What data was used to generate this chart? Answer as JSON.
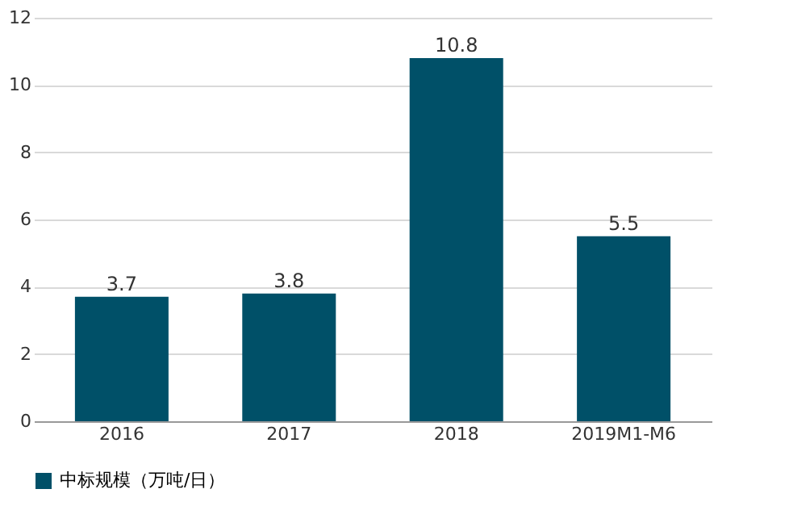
{
  "chart_data": {
    "type": "bar",
    "categories": [
      "2016",
      "2017",
      "2018",
      "2019M1-M6"
    ],
    "series": [
      {
        "name": "中标规模（万吨/日）",
        "color": "#005068",
        "values": [
          3.7,
          3.8,
          10.8,
          5.5
        ]
      }
    ],
    "ylim": [
      0,
      12
    ],
    "yticks": [
      0,
      2,
      4,
      6,
      8,
      10,
      12
    ],
    "grid": "y",
    "legend": "bottom",
    "data_labels": true
  }
}
